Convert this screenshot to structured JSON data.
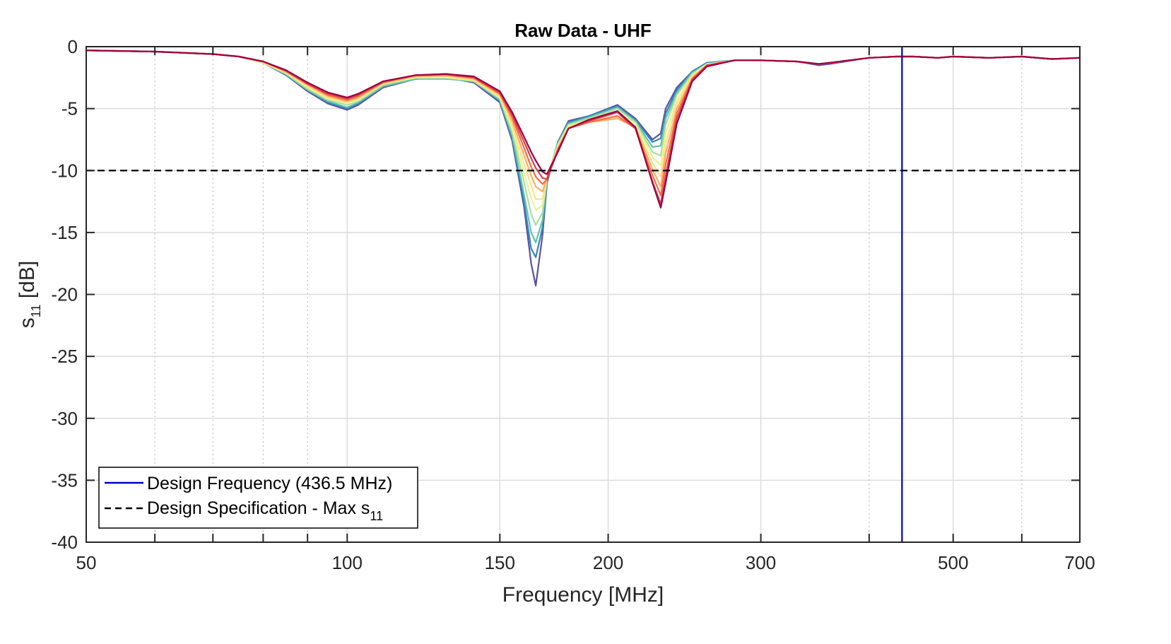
{
  "chart_data": {
    "type": "line",
    "title": "Raw Data - UHF",
    "xlabel": "Frequency [MHz]",
    "ylabel_main": "s",
    "ylabel_sub": "11",
    "ylabel_unit": " [dB]",
    "x_scale": "log",
    "xlim": [
      50,
      700
    ],
    "ylim": [
      -40,
      0
    ],
    "x_ticks": [
      50,
      100,
      150,
      200,
      300,
      500,
      700
    ],
    "x_tick_labels": [
      "50",
      "100",
      "150",
      "200",
      "300",
      "500",
      "700"
    ],
    "x_minor_ticks": [
      60,
      70,
      80,
      90,
      400,
      600
    ],
    "y_ticks": [
      0,
      -5,
      -10,
      -15,
      -20,
      -25,
      -30,
      -35,
      -40
    ],
    "y_tick_labels": [
      "0",
      "-5",
      "-10",
      "-15",
      "-20",
      "-25",
      "-30",
      "-35",
      "-40"
    ],
    "grid": true,
    "legend_placement": "bottom-left",
    "design_frequency": 436.5,
    "max_s11_spec": -10,
    "legend": [
      {
        "label": "Design Frequency (436.5 MHz)",
        "style": "solid",
        "color": "#0000cc"
      },
      {
        "label_main": "Design Specification - Max s",
        "label_sub": "11",
        "style": "dashed",
        "color": "#000000"
      }
    ],
    "series_colors": [
      "#5e4fa2",
      "#3288bd",
      "#66c2a5",
      "#abdda4",
      "#e6f598",
      "#fee08b",
      "#fdae61",
      "#f46d43",
      "#d53e4f",
      "#9e0142"
    ],
    "x": [
      50,
      60,
      70,
      75,
      80,
      85,
      90,
      95,
      100,
      103,
      110,
      120,
      130,
      140,
      150,
      155,
      160,
      163,
      165,
      168,
      170,
      175,
      180,
      190,
      205,
      215,
      225,
      230,
      233,
      240,
      250,
      260,
      280,
      300,
      330,
      350,
      360,
      400,
      430,
      450,
      480,
      500,
      550,
      600,
      650,
      700
    ],
    "series": [
      {
        "values": [
          -0.3,
          -0.4,
          -0.6,
          -0.8,
          -1.3,
          -2.3,
          -3.6,
          -4.6,
          -5.1,
          -4.7,
          -3.3,
          -2.6,
          -2.5,
          -2.9,
          -4.5,
          -7.6,
          -13.0,
          -17.5,
          -19.3,
          -15.2,
          -11.0,
          -7.7,
          -6.0,
          -5.6,
          -4.7,
          -5.8,
          -7.5,
          -7.0,
          -5.0,
          -3.3,
          -2.0,
          -1.3,
          -1.1,
          -1.1,
          -1.2,
          -1.5,
          -1.4,
          -0.9,
          -0.8,
          -0.8,
          -0.9,
          -0.8,
          -0.9,
          -0.8,
          -1.0,
          -0.9
        ]
      },
      {
        "values": [
          -0.3,
          -0.4,
          -0.6,
          -0.8,
          -1.3,
          -2.3,
          -3.5,
          -4.5,
          -5.0,
          -4.6,
          -3.2,
          -2.6,
          -2.5,
          -2.8,
          -4.4,
          -7.4,
          -12.6,
          -16.3,
          -17.0,
          -14.6,
          -10.8,
          -7.7,
          -6.1,
          -5.6,
          -4.8,
          -5.9,
          -7.7,
          -7.4,
          -5.4,
          -3.5,
          -2.0,
          -1.3,
          -1.1,
          -1.1,
          -1.2,
          -1.4,
          -1.3,
          -0.9,
          -0.8,
          -0.8,
          -0.9,
          -0.8,
          -0.9,
          -0.8,
          -1.0,
          -0.9
        ]
      },
      {
        "values": [
          -0.3,
          -0.4,
          -0.6,
          -0.8,
          -1.3,
          -2.2,
          -3.5,
          -4.4,
          -4.9,
          -4.5,
          -3.2,
          -2.6,
          -2.6,
          -2.8,
          -4.3,
          -7.2,
          -12.0,
          -15.0,
          -15.8,
          -14.0,
          -10.6,
          -7.8,
          -6.2,
          -5.7,
          -4.9,
          -6.0,
          -8.1,
          -8.0,
          -5.8,
          -3.7,
          -2.1,
          -1.4,
          -1.1,
          -1.1,
          -1.2,
          -1.4,
          -1.3,
          -0.9,
          -0.8,
          -0.8,
          -0.9,
          -0.8,
          -0.9,
          -0.8,
          -1.0,
          -0.9
        ]
      },
      {
        "values": [
          -0.3,
          -0.4,
          -0.6,
          -0.8,
          -1.3,
          -2.2,
          -3.4,
          -4.3,
          -4.7,
          -4.4,
          -3.1,
          -2.5,
          -2.5,
          -2.8,
          -4.2,
          -6.9,
          -11.0,
          -13.5,
          -14.4,
          -13.4,
          -10.6,
          -7.9,
          -6.3,
          -5.8,
          -5.0,
          -6.1,
          -8.5,
          -8.8,
          -6.3,
          -3.9,
          -2.2,
          -1.4,
          -1.1,
          -1.1,
          -1.2,
          -1.4,
          -1.3,
          -0.9,
          -0.8,
          -0.8,
          -0.9,
          -0.8,
          -0.9,
          -0.8,
          -1.0,
          -0.9
        ]
      },
      {
        "values": [
          -0.3,
          -0.4,
          -0.6,
          -0.8,
          -1.3,
          -2.1,
          -3.3,
          -4.2,
          -4.6,
          -4.3,
          -3.0,
          -2.5,
          -2.5,
          -2.7,
          -4.1,
          -6.6,
          -10.2,
          -12.2,
          -13.2,
          -12.8,
          -10.5,
          -8.0,
          -6.4,
          -5.9,
          -5.3,
          -6.2,
          -8.9,
          -9.6,
          -7.0,
          -4.3,
          -2.3,
          -1.4,
          -1.1,
          -1.1,
          -1.2,
          -1.4,
          -1.3,
          -0.9,
          -0.8,
          -0.8,
          -0.9,
          -0.8,
          -0.9,
          -0.8,
          -1.0,
          -0.9
        ]
      },
      {
        "values": [
          -0.3,
          -0.4,
          -0.6,
          -0.8,
          -1.3,
          -2.1,
          -3.2,
          -4.1,
          -4.5,
          -4.2,
          -3.0,
          -2.4,
          -2.4,
          -2.7,
          -4.0,
          -6.3,
          -9.5,
          -11.2,
          -12.3,
          -12.3,
          -10.6,
          -8.1,
          -6.5,
          -6.0,
          -5.6,
          -6.4,
          -9.4,
          -10.5,
          -7.8,
          -4.6,
          -2.4,
          -1.5,
          -1.1,
          -1.1,
          -1.2,
          -1.4,
          -1.3,
          -0.9,
          -0.8,
          -0.8,
          -0.9,
          -0.8,
          -0.9,
          -0.8,
          -1.0,
          -0.9
        ]
      },
      {
        "values": [
          -0.3,
          -0.4,
          -0.6,
          -0.8,
          -1.2,
          -2.0,
          -3.1,
          -4.0,
          -4.4,
          -4.1,
          -2.9,
          -2.4,
          -2.3,
          -2.6,
          -3.9,
          -6.0,
          -8.8,
          -10.4,
          -11.3,
          -11.7,
          -10.6,
          -8.2,
          -6.6,
          -6.1,
          -5.8,
          -6.5,
          -9.9,
          -11.3,
          -8.6,
          -5.0,
          -2.5,
          -1.5,
          -1.1,
          -1.1,
          -1.2,
          -1.4,
          -1.3,
          -0.9,
          -0.8,
          -0.8,
          -0.9,
          -0.8,
          -0.9,
          -0.8,
          -1.0,
          -0.9
        ]
      },
      {
        "values": [
          -0.3,
          -0.4,
          -0.6,
          -0.8,
          -1.2,
          -2.0,
          -3.0,
          -3.9,
          -4.3,
          -4.0,
          -2.9,
          -2.3,
          -2.3,
          -2.5,
          -3.8,
          -5.7,
          -8.2,
          -9.7,
          -10.5,
          -11.1,
          -10.7,
          -8.3,
          -6.6,
          -6.1,
          -5.6,
          -6.6,
          -10.4,
          -12.0,
          -9.5,
          -5.4,
          -2.6,
          -1.5,
          -1.1,
          -1.1,
          -1.2,
          -1.4,
          -1.3,
          -0.9,
          -0.8,
          -0.8,
          -0.9,
          -0.8,
          -0.9,
          -0.8,
          -1.0,
          -0.9
        ]
      },
      {
        "values": [
          -0.3,
          -0.4,
          -0.6,
          -0.8,
          -1.2,
          -1.9,
          -3.0,
          -3.8,
          -4.2,
          -3.9,
          -2.8,
          -2.3,
          -2.2,
          -2.5,
          -3.7,
          -5.5,
          -7.7,
          -9.0,
          -9.8,
          -10.6,
          -10.7,
          -8.4,
          -6.6,
          -6.0,
          -5.3,
          -6.6,
          -10.9,
          -12.7,
          -10.4,
          -5.8,
          -2.7,
          -1.5,
          -1.1,
          -1.1,
          -1.2,
          -1.4,
          -1.3,
          -0.9,
          -0.8,
          -0.8,
          -0.9,
          -0.8,
          -0.9,
          -0.8,
          -1.0,
          -0.9
        ]
      },
      {
        "values": [
          -0.3,
          -0.4,
          -0.6,
          -0.8,
          -1.2,
          -1.9,
          -2.9,
          -3.7,
          -4.1,
          -3.8,
          -2.8,
          -2.3,
          -2.2,
          -2.4,
          -3.6,
          -5.3,
          -7.3,
          -8.5,
          -9.2,
          -10.1,
          -10.3,
          -8.5,
          -6.6,
          -5.9,
          -5.2,
          -6.5,
          -11.0,
          -13.0,
          -11.0,
          -6.2,
          -2.8,
          -1.6,
          -1.1,
          -1.1,
          -1.2,
          -1.4,
          -1.3,
          -0.9,
          -0.8,
          -0.8,
          -0.9,
          -0.8,
          -0.9,
          -0.8,
          -1.0,
          -0.9
        ]
      }
    ]
  }
}
